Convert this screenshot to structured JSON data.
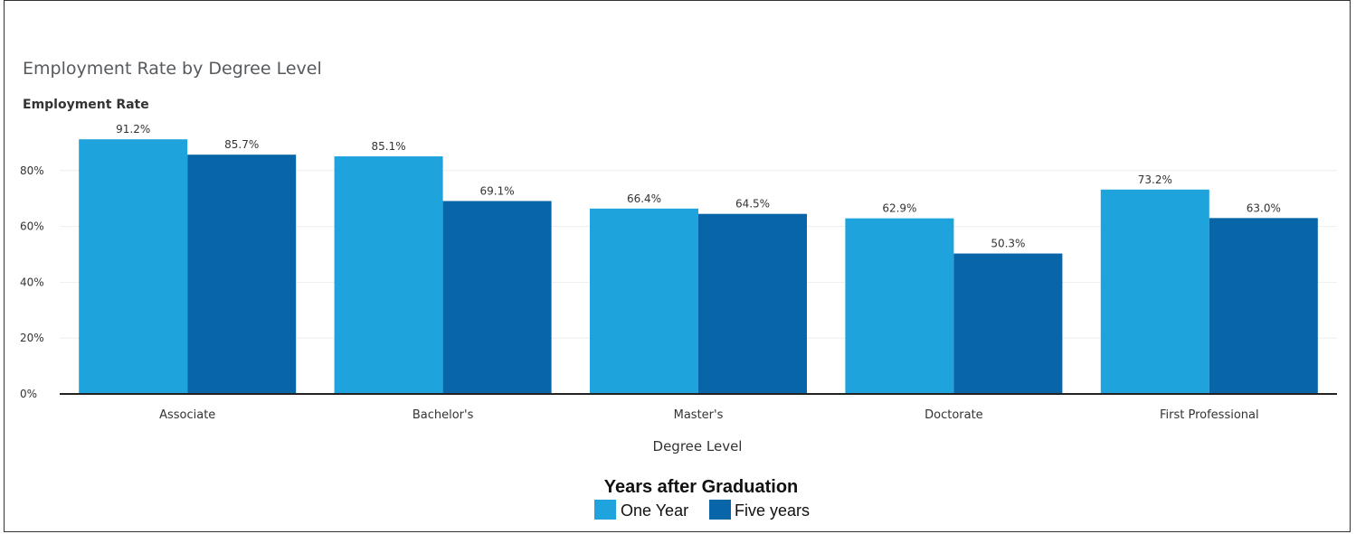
{
  "chart_data": {
    "type": "bar",
    "title": "Employment Rate by Degree Level",
    "ylabel": "Employment Rate",
    "xlabel": "Degree Level",
    "categories": [
      "Associate",
      "Bachelor's",
      "Master's",
      "Doctorate",
      "First Professional"
    ],
    "series": [
      {
        "name": "One Year",
        "color": "#1ea3dd",
        "values": [
          91.2,
          85.1,
          66.4,
          62.9,
          73.2
        ],
        "labels": [
          "91.2%",
          "85.1%",
          "66.4%",
          "62.9%",
          "73.2%"
        ]
      },
      {
        "name": "Five years",
        "color": "#0765a8",
        "values": [
          85.7,
          69.1,
          64.5,
          50.3,
          63.0
        ],
        "labels": [
          "85.7%",
          "69.1%",
          "64.5%",
          "50.3%",
          "63.0%"
        ]
      }
    ],
    "yticks": [
      0,
      20,
      40,
      60,
      80
    ],
    "ytick_labels": [
      "0%",
      "20%",
      "40%",
      "60%",
      "80%"
    ],
    "ylim": [
      0,
      100
    ],
    "grid": true,
    "legend": {
      "title": "Years after Graduation",
      "placement": "bottom-center"
    }
  }
}
